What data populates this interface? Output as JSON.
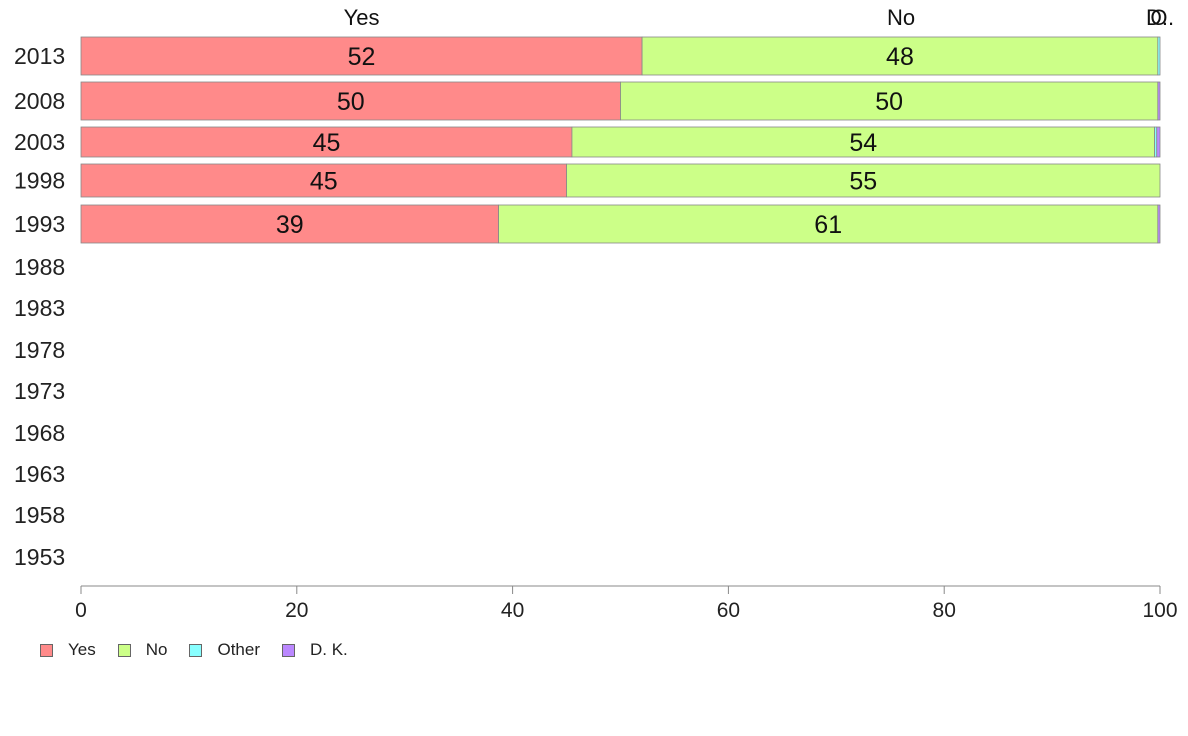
{
  "chart_data": {
    "type": "bar",
    "orientation": "horizontal",
    "stacked": true,
    "categories": [
      "2013",
      "2008",
      "2003",
      "1998",
      "1993",
      "1988",
      "1983",
      "1978",
      "1973",
      "1968",
      "1963",
      "1958",
      "1953"
    ],
    "series": [
      {
        "name": "Yes",
        "color": "#ff8a8a",
        "values": [
          52,
          50,
          45.5,
          45,
          38.7,
          null,
          null,
          null,
          null,
          null,
          null,
          null,
          null
        ],
        "labels": [
          "52",
          "50",
          "45",
          "45",
          "39",
          "",
          "",
          "",
          "",
          "",
          "",
          "",
          ""
        ]
      },
      {
        "name": "No",
        "color": "#ccff88",
        "values": [
          47.8,
          49.8,
          54,
          55,
          61.1,
          null,
          null,
          null,
          null,
          null,
          null,
          null,
          null
        ],
        "labels": [
          "48",
          "50",
          "54",
          "55",
          "61",
          "",
          "",
          "",
          "",
          "",
          "",
          "",
          ""
        ]
      },
      {
        "name": "Other",
        "color": "#88ffff",
        "values": [
          0.2,
          0,
          0.2,
          0,
          0,
          null,
          null,
          null,
          null,
          null,
          null,
          null,
          null
        ]
      },
      {
        "name": "D. K.",
        "color": "#bb88ff",
        "values": [
          0,
          0.2,
          0.3,
          0,
          0.2,
          null,
          null,
          null,
          null,
          null,
          null,
          null,
          null
        ]
      }
    ],
    "top_labels": [
      {
        "text": "Yes",
        "x": 26
      },
      {
        "text": "No",
        "x": 76
      },
      {
        "text": "O",
        "x": 99.9
      },
      {
        "text": "D..",
        "x": 100
      }
    ],
    "xlim": [
      0,
      100
    ],
    "xticks": [
      "0",
      "20",
      "40",
      "60",
      "80",
      "100"
    ],
    "grid": false,
    "legend_position": "bottom-left",
    "legend": [
      {
        "label": "Yes",
        "color": "#ff8a8a"
      },
      {
        "label": "No",
        "color": "#ccff88"
      },
      {
        "label": "Other",
        "color": "#88ffff"
      },
      {
        "label": "D. K.",
        "color": "#bb88ff"
      }
    ]
  }
}
